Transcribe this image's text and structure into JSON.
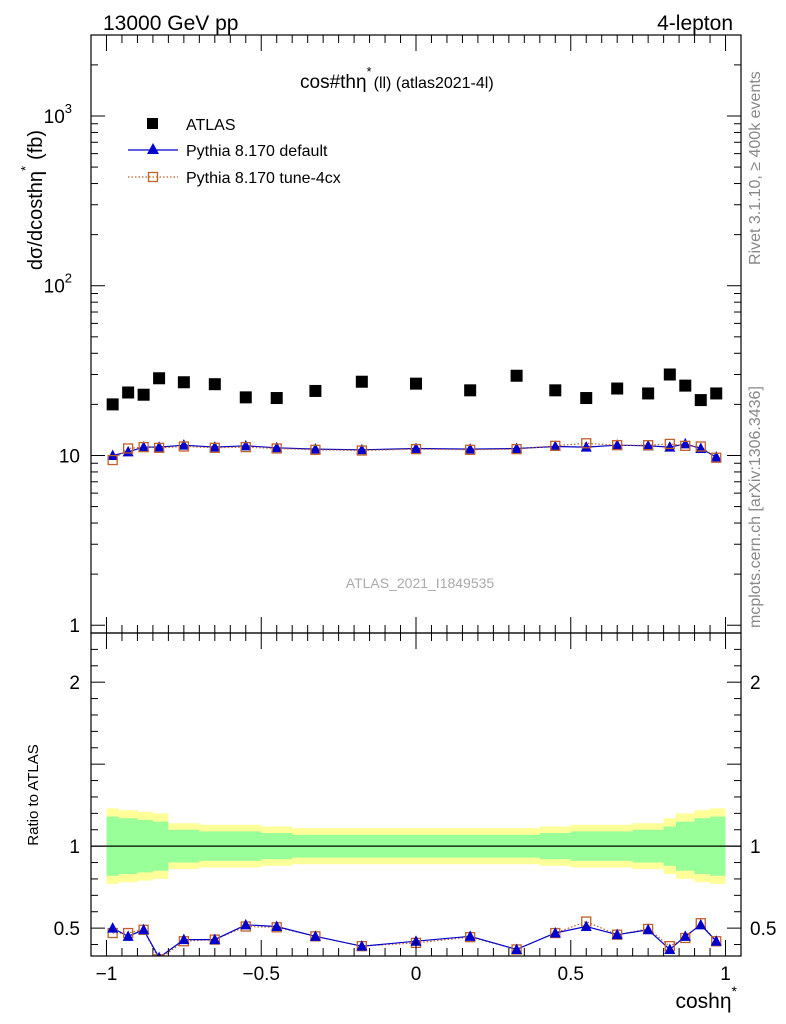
{
  "header": {
    "left_label": "13000 GeV pp",
    "right_label": "4-lepton"
  },
  "side_labels": {
    "rivet": "Rivet 3.1.10, ≥ 400k events",
    "mcplots": "mcplots.cern.ch [arXiv:1306.3436]"
  },
  "chart_data": [
    {
      "type": "scatter",
      "title": "cos#thη* (ll) (atlas2021-4l)",
      "title_main": "cos#thη",
      "title_sup": "*",
      "title_rest": "(ll) (atlas2021-4l)",
      "ylabel_main": "dσ/dcosthη",
      "ylabel_sup": "*",
      "ylabel_unit": "(fb)",
      "yscale": "log",
      "ylim": [
        0.9,
        3000
      ],
      "xlim": [
        -1.05,
        1.05
      ],
      "y_ticks": [
        {
          "value": 1,
          "base": "1",
          "exp": ""
        },
        {
          "value": 10,
          "base": "10",
          "exp": ""
        },
        {
          "value": 100,
          "base": "10",
          "exp": "2"
        },
        {
          "value": 1000,
          "base": "10",
          "exp": "3"
        }
      ],
      "watermark": "ATLAS_2021_I1849535",
      "legend_position": "top-left",
      "x": [
        -0.98,
        -0.93,
        -0.88,
        -0.83,
        -0.75,
        -0.65,
        -0.55,
        -0.45,
        -0.325,
        -0.175,
        0,
        0.175,
        0.325,
        0.45,
        0.55,
        0.65,
        0.75,
        0.82,
        0.87,
        0.92,
        0.97
      ],
      "series": [
        {
          "name": "ATLAS",
          "marker": "square",
          "color": "#000000",
          "values": [
            20.0,
            23.5,
            22.8,
            28.5,
            27.0,
            26.3,
            22.0,
            21.8,
            24.0,
            27.2,
            26.5,
            24.2,
            29.5,
            24.2,
            21.8,
            24.8,
            23.2,
            30.0,
            25.8,
            21.2,
            23.2
          ]
        },
        {
          "name": "Pythia 8.170 default",
          "marker": "triangle",
          "color": "#0000cc",
          "line": "solid",
          "values": [
            10.0,
            10.5,
            11.2,
            11.2,
            11.5,
            11.2,
            11.4,
            11.1,
            10.9,
            10.8,
            11.0,
            10.9,
            11.0,
            11.3,
            11.2,
            11.5,
            11.4,
            11.2,
            11.7,
            11.0,
            9.8
          ]
        },
        {
          "name": "Pythia 8.170 tune-4cx",
          "marker": "open-square",
          "color": "#c0602a",
          "line": "dotted",
          "values": [
            9.4,
            11.0,
            11.2,
            11.1,
            11.3,
            11.1,
            11.2,
            11.0,
            10.8,
            10.7,
            10.9,
            10.8,
            10.9,
            11.4,
            11.8,
            11.5,
            11.5,
            11.7,
            11.4,
            11.3,
            9.7
          ]
        }
      ]
    },
    {
      "type": "line",
      "ylabel": "Ratio to ATLAS",
      "xlabel_main": "coshη",
      "xlabel_sup": "*",
      "ylim": [
        0.33,
        2.3
      ],
      "xlim": [
        -1.05,
        1.05
      ],
      "y_ticks": [
        "0.5",
        "1",
        "2"
      ],
      "x_ticks": [
        "−1",
        "−0.5",
        "0",
        "0.5",
        "1"
      ],
      "x_tick_values": [
        -1,
        -0.5,
        0,
        0.5,
        1
      ],
      "reference_line": 1,
      "band_colors": {
        "inner": "#99ff99",
        "outer": "#ffff99"
      },
      "bin_edges": [
        -1.0,
        -0.96,
        -0.9,
        -0.85,
        -0.8,
        -0.7,
        -0.6,
        -0.5,
        -0.4,
        -0.25,
        -0.1,
        0.1,
        0.25,
        0.4,
        0.5,
        0.6,
        0.7,
        0.8,
        0.84,
        0.9,
        0.95,
        1.0
      ],
      "band_inner": [
        0.18,
        0.17,
        0.16,
        0.15,
        0.1,
        0.09,
        0.09,
        0.08,
        0.07,
        0.07,
        0.07,
        0.07,
        0.07,
        0.08,
        0.09,
        0.09,
        0.1,
        0.12,
        0.15,
        0.17,
        0.18
      ],
      "band_outer": [
        0.23,
        0.22,
        0.21,
        0.2,
        0.14,
        0.13,
        0.13,
        0.12,
        0.11,
        0.11,
        0.11,
        0.11,
        0.11,
        0.12,
        0.13,
        0.13,
        0.14,
        0.17,
        0.2,
        0.22,
        0.23
      ],
      "x": [
        -0.98,
        -0.93,
        -0.88,
        -0.83,
        -0.75,
        -0.65,
        -0.55,
        -0.45,
        -0.325,
        -0.175,
        0,
        0.175,
        0.325,
        0.45,
        0.55,
        0.65,
        0.75,
        0.82,
        0.87,
        0.92,
        0.97
      ],
      "series": [
        {
          "name": "Pythia 8.170 default",
          "color": "#0000cc",
          "values": [
            0.5,
            0.45,
            0.49,
            0.32,
            0.43,
            0.43,
            0.52,
            0.51,
            0.45,
            0.39,
            0.42,
            0.45,
            0.37,
            0.47,
            0.51,
            0.46,
            0.49,
            0.37,
            0.45,
            0.52,
            0.42
          ]
        },
        {
          "name": "Pythia 8.170 tune-4cx",
          "color": "#c0602a",
          "values": [
            0.47,
            0.47,
            0.49,
            0.31,
            0.42,
            0.43,
            0.51,
            0.505,
            0.45,
            0.39,
            0.41,
            0.445,
            0.37,
            0.47,
            0.54,
            0.46,
            0.495,
            0.39,
            0.44,
            0.53,
            0.42
          ]
        }
      ]
    }
  ]
}
